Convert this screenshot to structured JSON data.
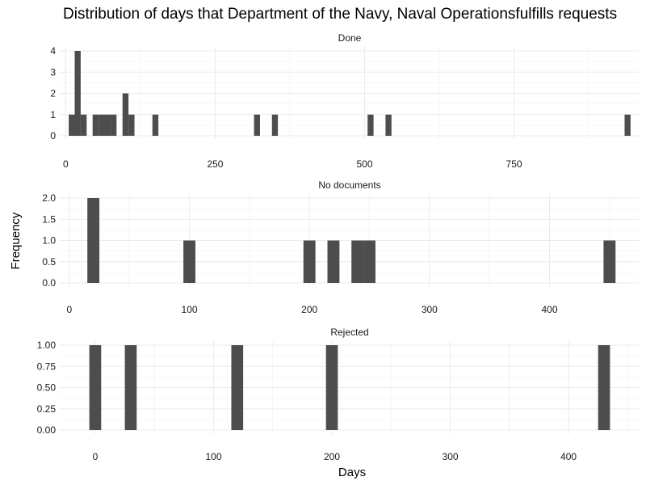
{
  "chart_data": {
    "type": "bar",
    "title": "Distribution of days that Department of the Navy, Naval Operationsfulfills requests",
    "xlabel": "Days",
    "ylabel": "Frequency",
    "grid": true,
    "legend": "none",
    "bar_color": "#4d4d4d",
    "panels": [
      {
        "name": "Done",
        "xlim": [
          -10,
          960
        ],
        "ylim": [
          0,
          4
        ],
        "bin_width": 10,
        "x_ticks": [
          0,
          250,
          500,
          750
        ],
        "y_ticks": [
          0,
          1,
          2,
          3,
          4
        ],
        "y_tick_labels": [
          "0",
          "1",
          "2",
          "3",
          "4"
        ],
        "bins": [
          {
            "x": 10,
            "count": 1
          },
          {
            "x": 20,
            "count": 4
          },
          {
            "x": 30,
            "count": 1
          },
          {
            "x": 50,
            "count": 1
          },
          {
            "x": 60,
            "count": 1
          },
          {
            "x": 70,
            "count": 1
          },
          {
            "x": 80,
            "count": 1
          },
          {
            "x": 100,
            "count": 2
          },
          {
            "x": 110,
            "count": 1
          },
          {
            "x": 150,
            "count": 1
          },
          {
            "x": 320,
            "count": 1
          },
          {
            "x": 350,
            "count": 1
          },
          {
            "x": 510,
            "count": 1
          },
          {
            "x": 540,
            "count": 1
          },
          {
            "x": 940,
            "count": 1
          }
        ]
      },
      {
        "name": "No documents",
        "xlim": [
          -8,
          475
        ],
        "ylim": [
          0,
          2
        ],
        "bin_width": 10,
        "x_ticks": [
          0,
          100,
          200,
          300,
          400
        ],
        "y_ticks": [
          0,
          0.5,
          1,
          1.5,
          2
        ],
        "y_tick_labels": [
          "0.0",
          "0.5",
          "1.0",
          "1.5",
          "2.0"
        ],
        "bins": [
          {
            "x": 20,
            "count": 2
          },
          {
            "x": 100,
            "count": 1
          },
          {
            "x": 200,
            "count": 1
          },
          {
            "x": 220,
            "count": 1
          },
          {
            "x": 240,
            "count": 1
          },
          {
            "x": 250,
            "count": 1
          },
          {
            "x": 450,
            "count": 1
          }
        ]
      },
      {
        "name": "Rejected",
        "xlim": [
          -30,
          460
        ],
        "ylim": [
          0,
          1
        ],
        "bin_width": 10,
        "x_ticks": [
          0,
          100,
          200,
          300,
          400
        ],
        "y_ticks": [
          0,
          0.25,
          0.5,
          0.75,
          1
        ],
        "y_tick_labels": [
          "0.00",
          "0.25",
          "0.50",
          "0.75",
          "1.00"
        ],
        "bins": [
          {
            "x": 0,
            "count": 1
          },
          {
            "x": 30,
            "count": 1
          },
          {
            "x": 120,
            "count": 1
          },
          {
            "x": 200,
            "count": 1
          },
          {
            "x": 430,
            "count": 1
          }
        ]
      }
    ]
  }
}
